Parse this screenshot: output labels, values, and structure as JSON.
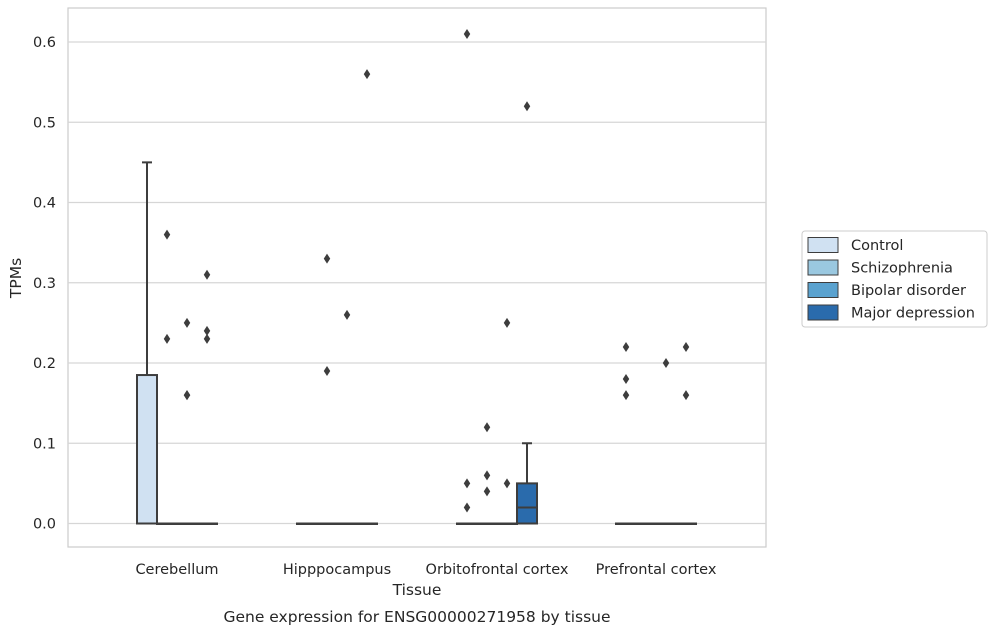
{
  "caption": "Gene expression for ENSG00000271958 by tissue",
  "chart_data": {
    "type": "box",
    "xlabel": "Tissue",
    "ylabel": "TPMs",
    "ylim": [
      -0.03,
      0.64
    ],
    "yticks": [
      "0.0",
      "0.1",
      "0.2",
      "0.3",
      "0.4",
      "0.5",
      "0.6"
    ],
    "grid": "horizontal",
    "legend_placement": "right",
    "categories": [
      "Cerebellum",
      "Hipppocampus",
      "Orbitofrontal cortex",
      "Prefrontal cortex"
    ],
    "series": [
      {
        "name": "Control",
        "color": "#d0e1f2",
        "boxes": [
          {
            "q1": 0.0,
            "median": 0.0,
            "q3": 0.185,
            "whisker_low": 0.0,
            "whisker_high": 0.45,
            "outliers": []
          },
          {
            "q1": 0.0,
            "median": 0.0,
            "q3": 0.0,
            "whisker_low": 0.0,
            "whisker_high": 0.0,
            "outliers": []
          },
          {
            "q1": 0.0,
            "median": 0.0,
            "q3": 0.0,
            "whisker_low": 0.0,
            "whisker_high": 0.0,
            "outliers": [
              0.05,
              0.02,
              0.61
            ]
          },
          {
            "q1": 0.0,
            "median": 0.0,
            "q3": 0.0,
            "whisker_low": 0.0,
            "whisker_high": 0.0,
            "outliers": [
              0.22,
              0.18,
              0.16
            ]
          }
        ]
      },
      {
        "name": "Schizophrenia",
        "color": "#9ac8e0",
        "boxes": [
          {
            "q1": 0.0,
            "median": 0.0,
            "q3": 0.0,
            "whisker_low": 0.0,
            "whisker_high": 0.0,
            "outliers": [
              0.36,
              0.23
            ]
          },
          {
            "q1": 0.0,
            "median": 0.0,
            "q3": 0.0,
            "whisker_low": 0.0,
            "whisker_high": 0.0,
            "outliers": [
              0.33,
              0.19
            ]
          },
          {
            "q1": 0.0,
            "median": 0.0,
            "q3": 0.0,
            "whisker_low": 0.0,
            "whisker_high": 0.0,
            "outliers": [
              0.12,
              0.06,
              0.04
            ]
          },
          {
            "q1": 0.0,
            "median": 0.0,
            "q3": 0.0,
            "whisker_low": 0.0,
            "whisker_high": 0.0,
            "outliers": []
          }
        ]
      },
      {
        "name": "Bipolar disorder",
        "color": "#5aa2cf",
        "boxes": [
          {
            "q1": 0.0,
            "median": 0.0,
            "q3": 0.0,
            "whisker_low": 0.0,
            "whisker_high": 0.0,
            "outliers": [
              0.25,
              0.16,
              0.16
            ]
          },
          {
            "q1": 0.0,
            "median": 0.0,
            "q3": 0.0,
            "whisker_low": 0.0,
            "whisker_high": 0.0,
            "outliers": [
              0.26
            ]
          },
          {
            "q1": 0.0,
            "median": 0.0,
            "q3": 0.0,
            "whisker_low": 0.0,
            "whisker_high": 0.0,
            "outliers": [
              0.25,
              0.05
            ]
          },
          {
            "q1": 0.0,
            "median": 0.0,
            "q3": 0.0,
            "whisker_low": 0.0,
            "whisker_high": 0.0,
            "outliers": [
              0.2
            ]
          }
        ]
      },
      {
        "name": "Major depression",
        "color": "#2a6bac",
        "boxes": [
          {
            "q1": 0.0,
            "median": 0.0,
            "q3": 0.0,
            "whisker_low": 0.0,
            "whisker_high": 0.0,
            "outliers": [
              0.31,
              0.24,
              0.23
            ]
          },
          {
            "q1": 0.0,
            "median": 0.0,
            "q3": 0.0,
            "whisker_low": 0.0,
            "whisker_high": 0.0,
            "outliers": [
              0.56
            ]
          },
          {
            "q1": 0.0,
            "median": 0.02,
            "q3": 0.05,
            "whisker_low": 0.0,
            "whisker_high": 0.1,
            "outliers": [
              0.52
            ]
          },
          {
            "q1": 0.0,
            "median": 0.0,
            "q3": 0.0,
            "whisker_low": 0.0,
            "whisker_high": 0.0,
            "outliers": [
              0.22,
              0.16
            ]
          }
        ]
      }
    ]
  }
}
